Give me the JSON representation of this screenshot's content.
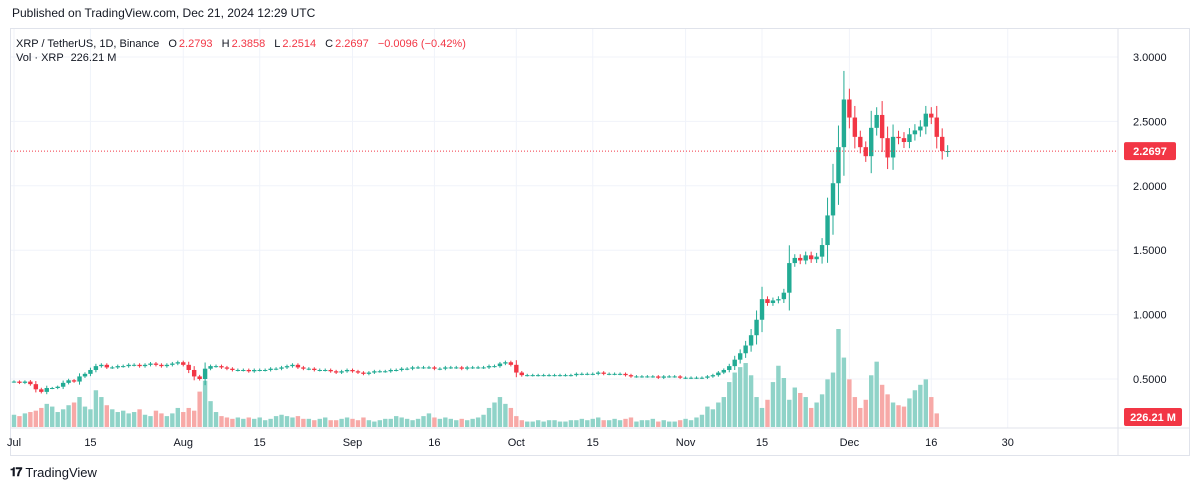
{
  "header": {
    "published": "Published on TradingView.com, Dec 21, 2024 12:29 UTC"
  },
  "legend": {
    "symbol": "XRP / TetherUS, 1D, Binance",
    "o_label": "O",
    "o_value": "2.2793",
    "h_label": "H",
    "h_value": "2.3858",
    "l_label": "L",
    "l_value": "2.2514",
    "c_label": "C",
    "c_value": "2.2697",
    "change": "−0.0096 (−0.42%)",
    "vol_label": "Vol · XRP",
    "vol_value": "226.21 M"
  },
  "footer": {
    "brand": "TradingView"
  },
  "colors": {
    "up": "#22ab94",
    "down": "#f23645",
    "up_vol": "#8fd3c8",
    "down_vol": "#f7a9a7",
    "grid": "#f0f3fa"
  },
  "chart_data": {
    "type": "candlestick",
    "y_ticks": [
      "3.0000",
      "2.5000",
      "2.0000",
      "1.5000",
      "1.0000",
      "0.5000"
    ],
    "ylim": [
      0.2,
      3.15
    ],
    "x_ticks": [
      {
        "label": "Jul",
        "day": 0
      },
      {
        "label": "15",
        "day": 14
      },
      {
        "label": "Aug",
        "day": 31
      },
      {
        "label": "15",
        "day": 45
      },
      {
        "label": "Sep",
        "day": 62
      },
      {
        "label": "16",
        "day": 77
      },
      {
        "label": "Oct",
        "day": 92
      },
      {
        "label": "15",
        "day": 106
      },
      {
        "label": "Nov",
        "day": 123
      },
      {
        "label": "15",
        "day": 137
      },
      {
        "label": "Dec",
        "day": 153
      },
      {
        "label": "16",
        "day": 168
      },
      {
        "label": "30",
        "day": 182
      }
    ],
    "last_price": 2.2697,
    "last_price_label": "2.2697",
    "last_volume_label": "226.21 M",
    "start_date": "2024-07-01",
    "closes": [
      0.48,
      0.47,
      0.48,
      0.46,
      0.42,
      0.4,
      0.43,
      0.43,
      0.44,
      0.47,
      0.49,
      0.48,
      0.52,
      0.54,
      0.57,
      0.6,
      0.61,
      0.59,
      0.59,
      0.6,
      0.6,
      0.61,
      0.61,
      0.6,
      0.61,
      0.62,
      0.61,
      0.6,
      0.61,
      0.62,
      0.63,
      0.61,
      0.57,
      0.52,
      0.5,
      0.58,
      0.6,
      0.6,
      0.59,
      0.58,
      0.57,
      0.57,
      0.57,
      0.56,
      0.57,
      0.57,
      0.57,
      0.58,
      0.58,
      0.59,
      0.6,
      0.61,
      0.59,
      0.58,
      0.58,
      0.57,
      0.57,
      0.57,
      0.56,
      0.55,
      0.56,
      0.57,
      0.56,
      0.55,
      0.54,
      0.55,
      0.56,
      0.56,
      0.56,
      0.57,
      0.57,
      0.58,
      0.58,
      0.59,
      0.59,
      0.59,
      0.59,
      0.58,
      0.58,
      0.59,
      0.59,
      0.59,
      0.58,
      0.59,
      0.59,
      0.59,
      0.59,
      0.6,
      0.6,
      0.62,
      0.63,
      0.61,
      0.55,
      0.53,
      0.53,
      0.53,
      0.53,
      0.53,
      0.53,
      0.53,
      0.53,
      0.53,
      0.53,
      0.54,
      0.54,
      0.54,
      0.54,
      0.55,
      0.54,
      0.54,
      0.54,
      0.54,
      0.53,
      0.52,
      0.52,
      0.52,
      0.52,
      0.52,
      0.51,
      0.52,
      0.52,
      0.52,
      0.51,
      0.51,
      0.51,
      0.51,
      0.51,
      0.52,
      0.53,
      0.55,
      0.57,
      0.6,
      0.65,
      0.7,
      0.76,
      0.84,
      0.96,
      1.12,
      1.09,
      1.11,
      1.12,
      1.17,
      1.4,
      1.44,
      1.42,
      1.46,
      1.43,
      1.45,
      1.54,
      1.77,
      2.02,
      2.3,
      2.67,
      2.53,
      2.38,
      2.3,
      2.23,
      2.45,
      2.55,
      2.37,
      2.22,
      2.38,
      2.37,
      2.34,
      2.4,
      2.43,
      2.46,
      2.56,
      2.53,
      2.38,
      2.27,
      2.27
    ],
    "volumes": [
      0.09,
      0.08,
      0.1,
      0.11,
      0.12,
      0.14,
      0.17,
      0.15,
      0.11,
      0.13,
      0.16,
      0.18,
      0.22,
      0.15,
      0.13,
      0.27,
      0.22,
      0.16,
      0.13,
      0.11,
      0.12,
      0.1,
      0.11,
      0.13,
      0.09,
      0.08,
      0.12,
      0.1,
      0.08,
      0.1,
      0.14,
      0.11,
      0.14,
      0.12,
      0.26,
      0.34,
      0.19,
      0.11,
      0.08,
      0.07,
      0.06,
      0.07,
      0.06,
      0.07,
      0.06,
      0.07,
      0.05,
      0.06,
      0.08,
      0.09,
      0.08,
      0.07,
      0.08,
      0.06,
      0.06,
      0.05,
      0.06,
      0.07,
      0.05,
      0.05,
      0.06,
      0.07,
      0.06,
      0.05,
      0.07,
      0.05,
      0.04,
      0.05,
      0.06,
      0.06,
      0.08,
      0.07,
      0.06,
      0.05,
      0.06,
      0.08,
      0.1,
      0.07,
      0.06,
      0.07,
      0.06,
      0.05,
      0.06,
      0.05,
      0.06,
      0.07,
      0.09,
      0.14,
      0.18,
      0.22,
      0.17,
      0.14,
      0.08,
      0.05,
      0.04,
      0.04,
      0.05,
      0.04,
      0.05,
      0.05,
      0.04,
      0.04,
      0.05,
      0.05,
      0.06,
      0.05,
      0.06,
      0.07,
      0.05,
      0.05,
      0.06,
      0.05,
      0.06,
      0.07,
      0.04,
      0.05,
      0.05,
      0.06,
      0.04,
      0.05,
      0.04,
      0.04,
      0.05,
      0.06,
      0.05,
      0.07,
      0.09,
      0.15,
      0.13,
      0.18,
      0.22,
      0.33,
      0.4,
      0.44,
      0.47,
      0.38,
      0.22,
      0.14,
      0.2,
      0.33,
      0.45,
      0.36,
      0.2,
      0.29,
      0.25,
      0.22,
      0.14,
      0.18,
      0.24,
      0.35,
      0.4,
      0.72,
      0.51,
      0.35,
      0.22,
      0.14,
      0.2,
      0.38,
      0.48,
      0.31,
      0.24,
      0.18,
      0.16,
      0.15,
      0.21,
      0.27,
      0.31,
      0.35,
      0.22,
      0.1
    ]
  }
}
